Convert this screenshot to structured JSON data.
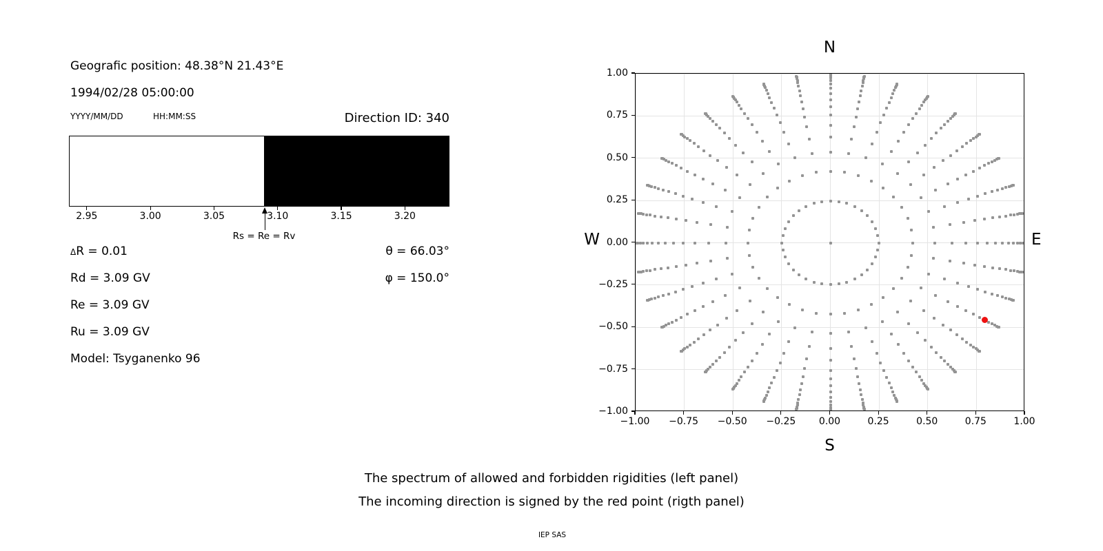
{
  "left_panel": {
    "geo_position": "Geografic position: 48.38°N 21.43°E",
    "datetime": "1994/02/28 05:00:00",
    "date_format_label": "YYYY/MM/DD",
    "time_format_label": "HH:MM:SS",
    "direction_id_label": "Direction ID: 340",
    "info_lines": [
      "ΔR = 0.01",
      "Rd = 3.09 GV",
      "Re = 3.09 GV",
      "Ru = 3.09 GV",
      "Model: Tsyganenko 96"
    ],
    "theta_label": "θ = 66.03°",
    "phi_label": "φ = 150.0°"
  },
  "captions": {
    "line1": "The spectrum of allowed and forbidden rigidities (left panel)",
    "line2": "The incoming direction is signed by the red point (rigth panel)",
    "credit": "IEP SAS"
  },
  "chart_data": [
    {
      "id": "rigidity_spectrum",
      "type": "bar",
      "description": "Spectrum of allowed (white) and forbidden (black) rigidities in GV",
      "xlim": [
        2.936,
        3.235
      ],
      "boundary": 3.09,
      "allowed_region": [
        2.936,
        3.09
      ],
      "forbidden_region": [
        3.09,
        3.235
      ],
      "allowed_color": "#ffffff",
      "forbidden_color": "#000000",
      "xticks": [
        {
          "v": 2.95,
          "label": "2.95"
        },
        {
          "v": 3.0,
          "label": "3.00"
        },
        {
          "v": 3.05,
          "label": "3.05"
        },
        {
          "v": 3.1,
          "label": "3.10"
        },
        {
          "v": 3.15,
          "label": "3.15"
        },
        {
          "v": 3.2,
          "label": "3.20"
        }
      ],
      "annotation": {
        "v": 3.09,
        "label": "Rs = Re = Rv"
      }
    },
    {
      "id": "direction_map",
      "type": "scatter",
      "description": "Grid of computed incoming directions; x = sin(theta)*cos(az), y = sin(theta)*sin(az); red point marks Direction ID 340",
      "xlim": [
        -1,
        1
      ],
      "ylim": [
        -1,
        1
      ],
      "grid": true,
      "ticks": [
        {
          "v": -1.0,
          "label": "−1.00"
        },
        {
          "v": -0.75,
          "label": "−0.75"
        },
        {
          "v": -0.5,
          "label": "−0.50"
        },
        {
          "v": -0.25,
          "label": "−0.25"
        },
        {
          "v": 0.0,
          "label": "0.00"
        },
        {
          "v": 0.25,
          "label": "0.25"
        },
        {
          "v": 0.5,
          "label": "0.50"
        },
        {
          "v": 0.75,
          "label": "0.75"
        },
        {
          "v": 1.0,
          "label": "1.00"
        }
      ],
      "compass": {
        "top": "N",
        "bottom": "S",
        "left": "W",
        "right": "E"
      },
      "dot_color": "#949494",
      "red_color": "#ee1111",
      "azimuth_deg": {
        "start": 0,
        "step": 10,
        "count": 36
      },
      "zenith_radii": [
        0.248,
        0.4227,
        0.5367,
        0.6242,
        0.6953,
        0.7546,
        0.8047,
        0.8472,
        0.8833,
        0.9138,
        0.939,
        0.9596,
        0.9758,
        0.9877,
        0.9956,
        0.9995
      ],
      "center_dot": true,
      "red_point": {
        "x": 0.7914,
        "y": -0.4569,
        "theta_deg": 66.03,
        "phi_deg": 150.0
      }
    }
  ]
}
